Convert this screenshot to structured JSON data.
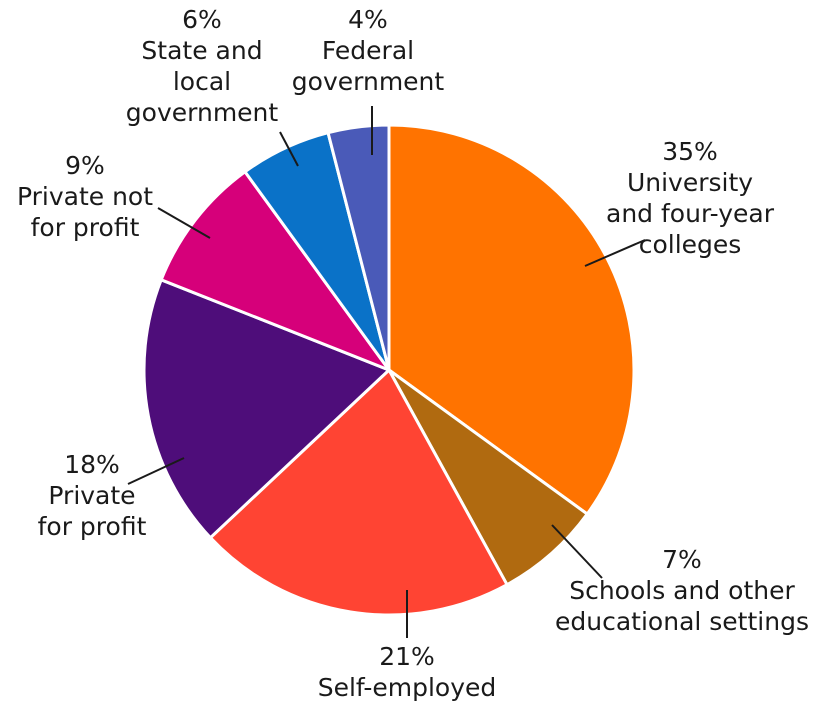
{
  "chart_data": {
    "type": "pie",
    "title": "",
    "slices": [
      {
        "percent_label": "35%",
        "value": 35,
        "name_lines": [
          "University",
          "and four-year",
          "colleges"
        ],
        "color": "#FF7300"
      },
      {
        "percent_label": "7%",
        "value": 7,
        "name_lines": [
          "Schools and other",
          "educational settings"
        ],
        "color": "#B06A10"
      },
      {
        "percent_label": "21%",
        "value": 21,
        "name_lines": [
          "Self-employed"
        ],
        "color": "#FF4433"
      },
      {
        "percent_label": "18%",
        "value": 18,
        "name_lines": [
          "Private",
          "for profit"
        ],
        "color": "#4E0D7A"
      },
      {
        "percent_label": "9%",
        "value": 9,
        "name_lines": [
          "Private not",
          "for profit"
        ],
        "color": "#D6007A"
      },
      {
        "percent_label": "6%",
        "value": 6,
        "name_lines": [
          "State and",
          "local",
          "government"
        ],
        "color": "#0A72C8"
      },
      {
        "percent_label": "4%",
        "value": 4,
        "name_lines": [
          "Federal",
          "government"
        ],
        "color": "#4A5AB8"
      }
    ]
  }
}
